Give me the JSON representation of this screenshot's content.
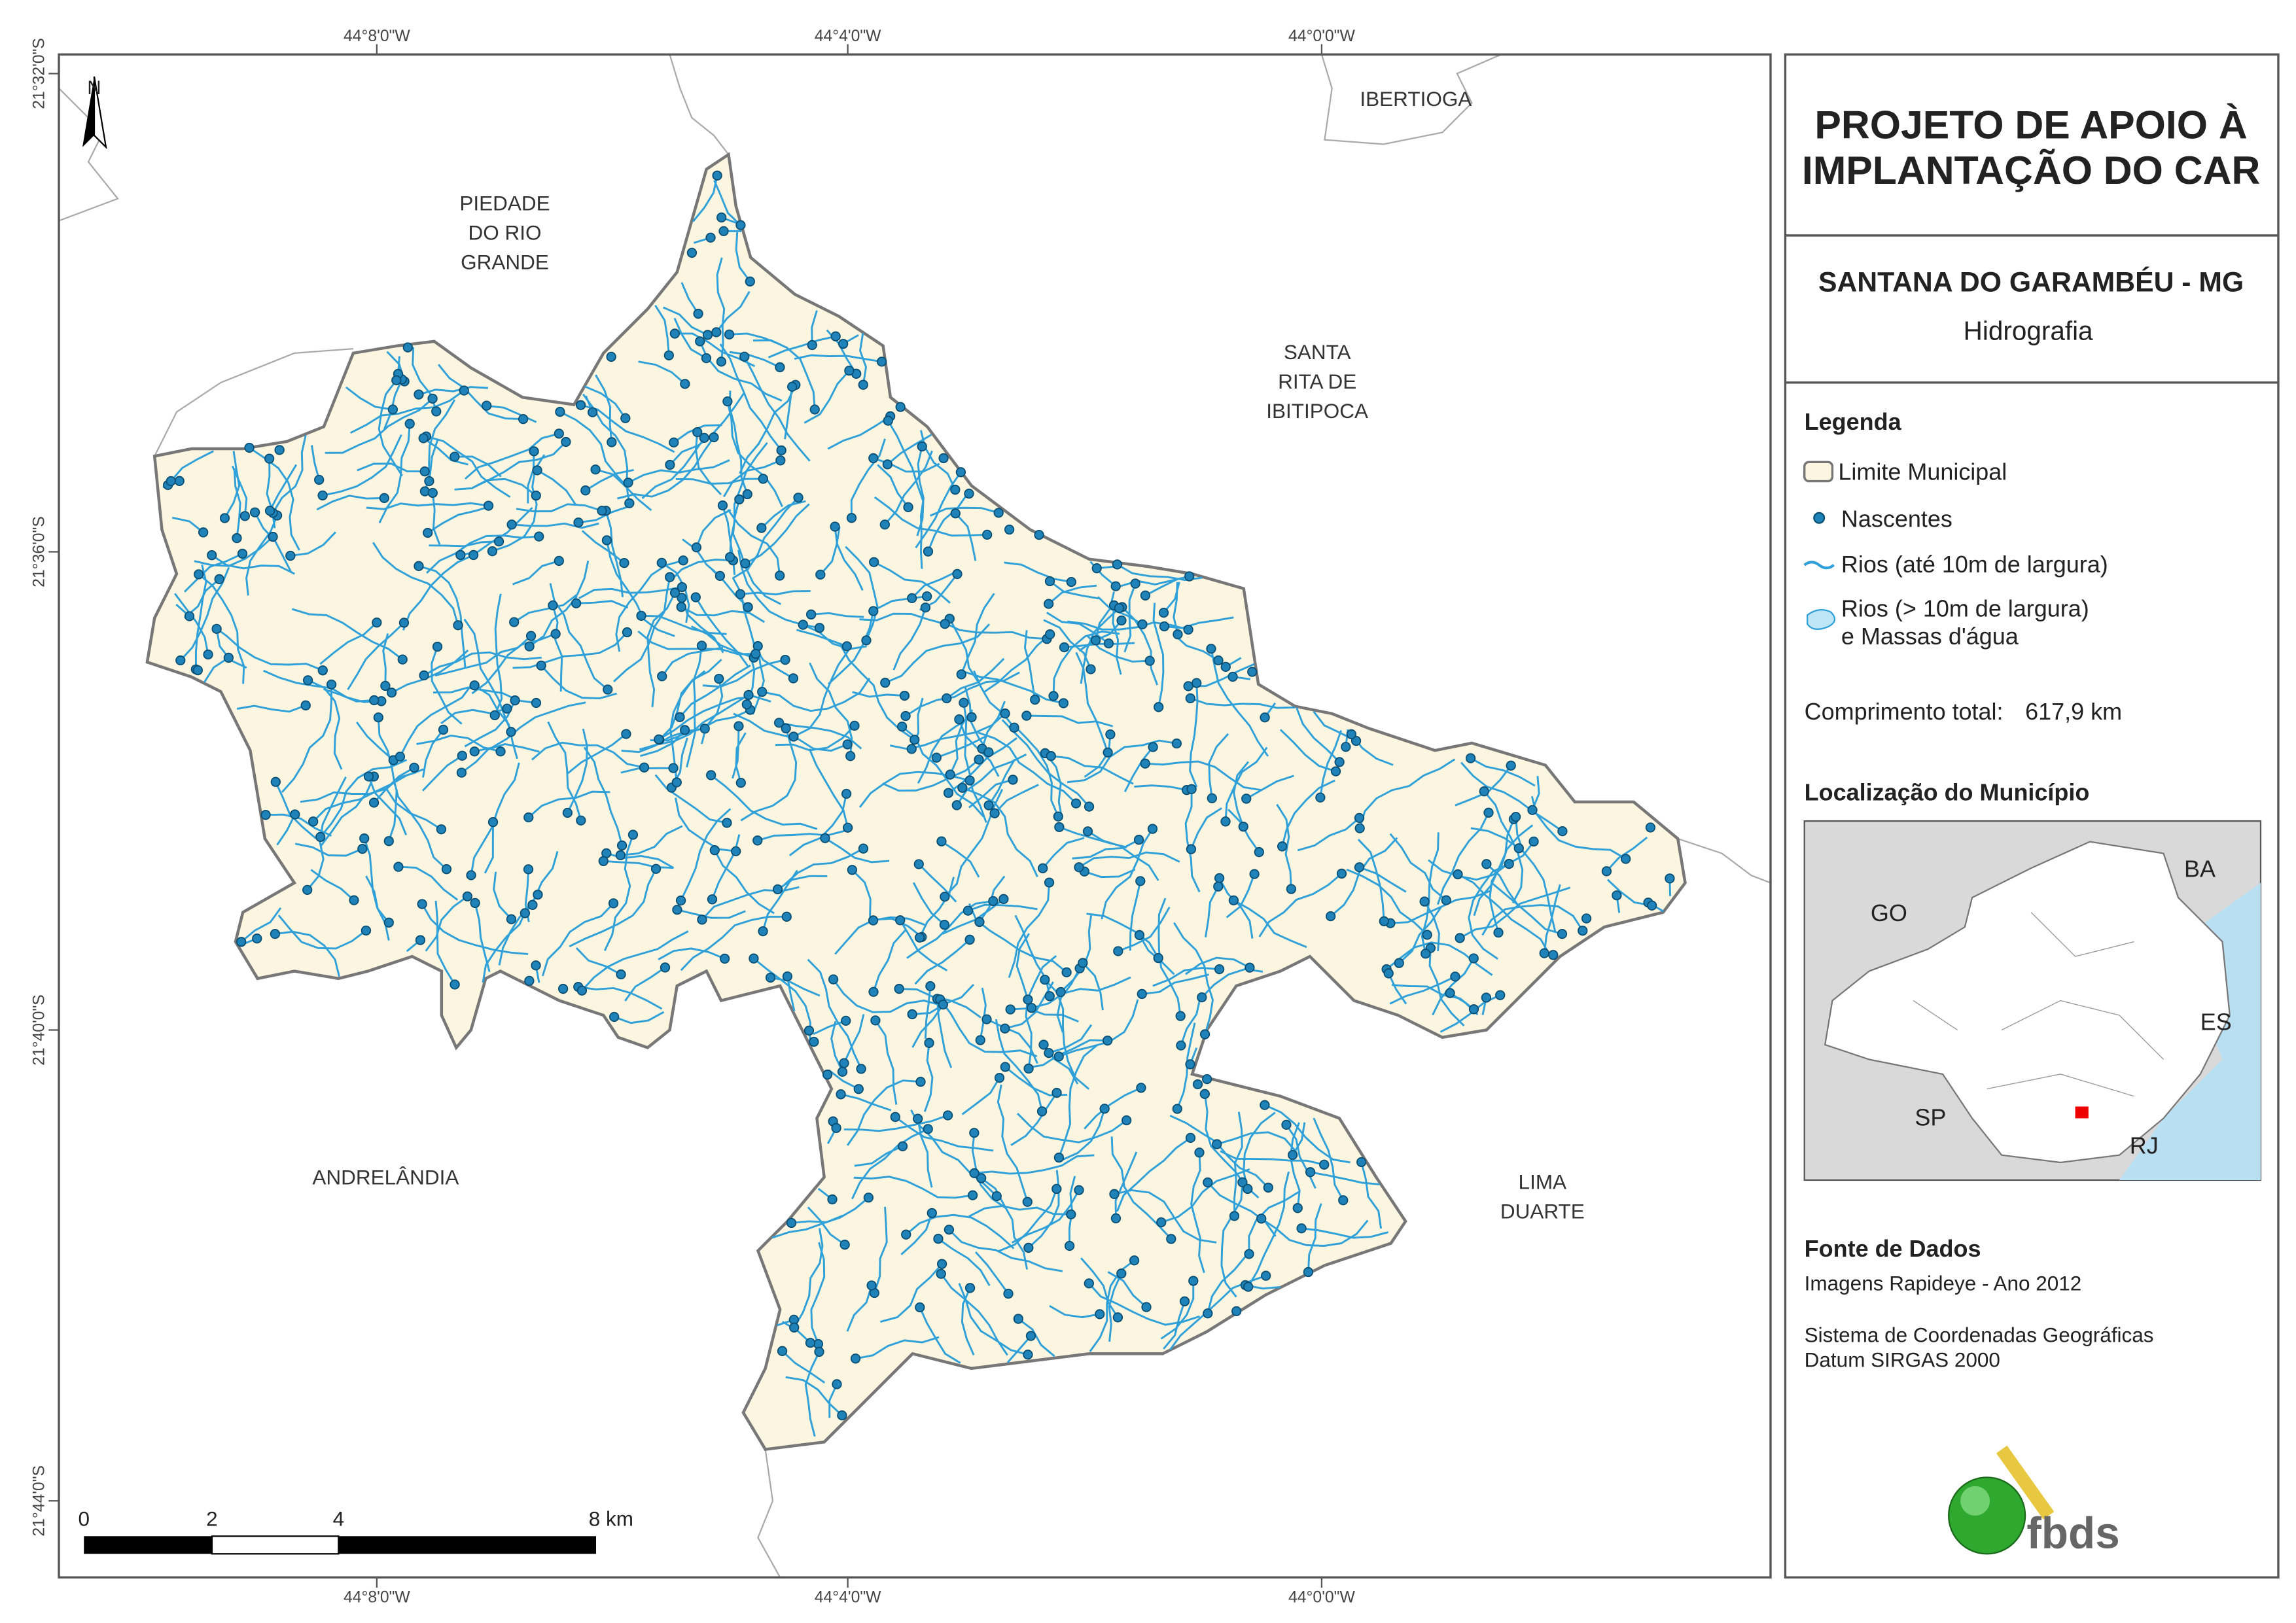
{
  "map": {
    "coordinates": {
      "top": [
        "44°8'0\"W",
        "44°4'0\"W",
        "44°0'0\"W"
      ],
      "bottom": [
        "44°8'0\"W",
        "44°4'0\"W",
        "44°0'0\"W"
      ],
      "left": [
        "21°32'0\"S",
        "21°36'0\"S",
        "21°40'0\"S",
        "21°44'0\"S"
      ]
    },
    "north": "N",
    "neighbors": [
      [
        "IBERTIOGA"
      ],
      [
        "PIEDADE",
        "DO RIO",
        "GRANDE"
      ],
      [
        "SANTA",
        "RITA DE",
        "IBITIPOCA"
      ],
      [
        "ANDRELÂNDIA"
      ],
      [
        "LIMA",
        "DUARTE"
      ]
    ],
    "scale_bar": [
      "0",
      "2",
      "4",
      "8 km"
    ]
  },
  "panel": {
    "title": [
      "PROJETO DE APOIO À",
      "IMPLANTAÇÃO DO CAR"
    ],
    "municipality": "SANTANA DO GARAMBÉU - MG",
    "theme": "Hidrografia",
    "legend": {
      "title": "Legenda",
      "items": [
        "Limite Municipal",
        "Nascentes",
        "Rios (até 10m de largura)",
        [
          "Rios (> 10m de largura)",
          "e Massas d'água"
        ]
      ],
      "total_label": "Comprimento total:",
      "total_value": "617,9 km"
    },
    "location": {
      "title": "Localização do Município",
      "labels": [
        "BA",
        "GO",
        "ES",
        "SP",
        "RJ"
      ]
    },
    "source": {
      "title": "Fonte de Dados",
      "lines": [
        "Imagens Rapideye - Ano 2012",
        "Sistema de Coordenadas Geográficas",
        "Datum SIRGAS 2000"
      ]
    },
    "logo": "fbds"
  }
}
